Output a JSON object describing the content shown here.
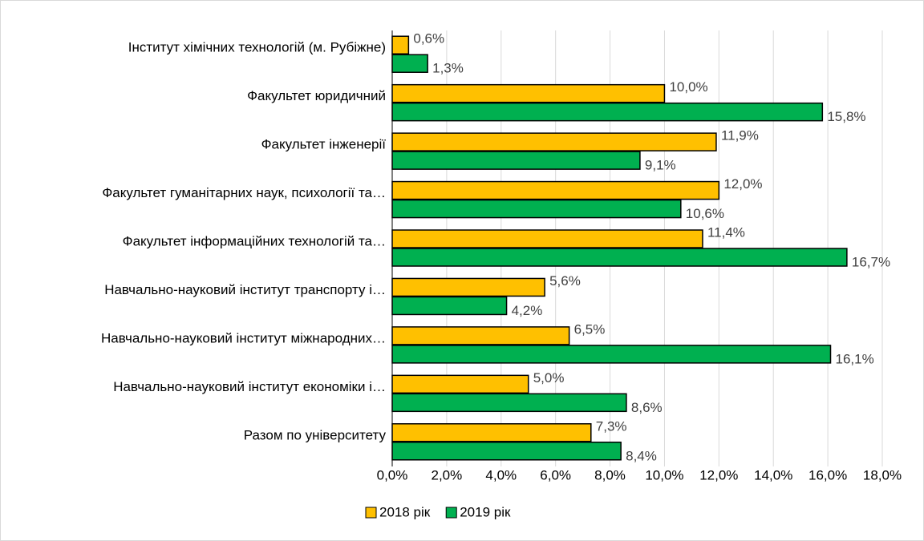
{
  "chart_data": {
    "type": "bar",
    "orientation": "horizontal",
    "categories": [
      "Інститут хімічних технологій (м. Рубіжне)",
      "Факультет юридичний",
      "Факультет інженерії",
      "Факультет гуманітарних наук, психології та…",
      "Факультет інформаційних технологій та…",
      "Навчально-науковий інститут транспорту і…",
      "Навчально-науковий інститут міжнародних…",
      "Навчально-науковий інститут економіки і…",
      "Разом по університету"
    ],
    "series": [
      {
        "name": "2018 рік",
        "color": "#ffc000",
        "values": [
          0.6,
          10.0,
          11.9,
          12.0,
          11.4,
          5.6,
          6.5,
          5.0,
          7.3
        ],
        "value_labels": [
          "0,6%",
          "10,0%",
          "11,9%",
          "12,0%",
          "11,4%",
          "5,6%",
          "6,5%",
          "5,0%",
          "7,3%"
        ]
      },
      {
        "name": "2019 рік",
        "color": "#00b050",
        "values": [
          1.3,
          15.8,
          9.1,
          10.6,
          16.7,
          4.2,
          16.1,
          8.6,
          8.4
        ],
        "value_labels": [
          "1,3%",
          "15,8%",
          "9,1%",
          "10,6%",
          "16,7%",
          "4,2%",
          "16,1%",
          "8,6%",
          "8,4%"
        ]
      }
    ],
    "xlim": [
      0,
      18
    ],
    "xticks": [
      {
        "value": 0,
        "label": "0,0%"
      },
      {
        "value": 2,
        "label": "2,0%"
      },
      {
        "value": 4,
        "label": "4,0%"
      },
      {
        "value": 6,
        "label": "6,0%"
      },
      {
        "value": 8,
        "label": "8,0%"
      },
      {
        "value": 10,
        "label": "10,0%"
      },
      {
        "value": 12,
        "label": "12,0%"
      },
      {
        "value": 14,
        "label": "14,0%"
      },
      {
        "value": 16,
        "label": "16,0%"
      },
      {
        "value": 18,
        "label": "18,0%"
      }
    ],
    "grid": true,
    "legend": "bottom"
  }
}
